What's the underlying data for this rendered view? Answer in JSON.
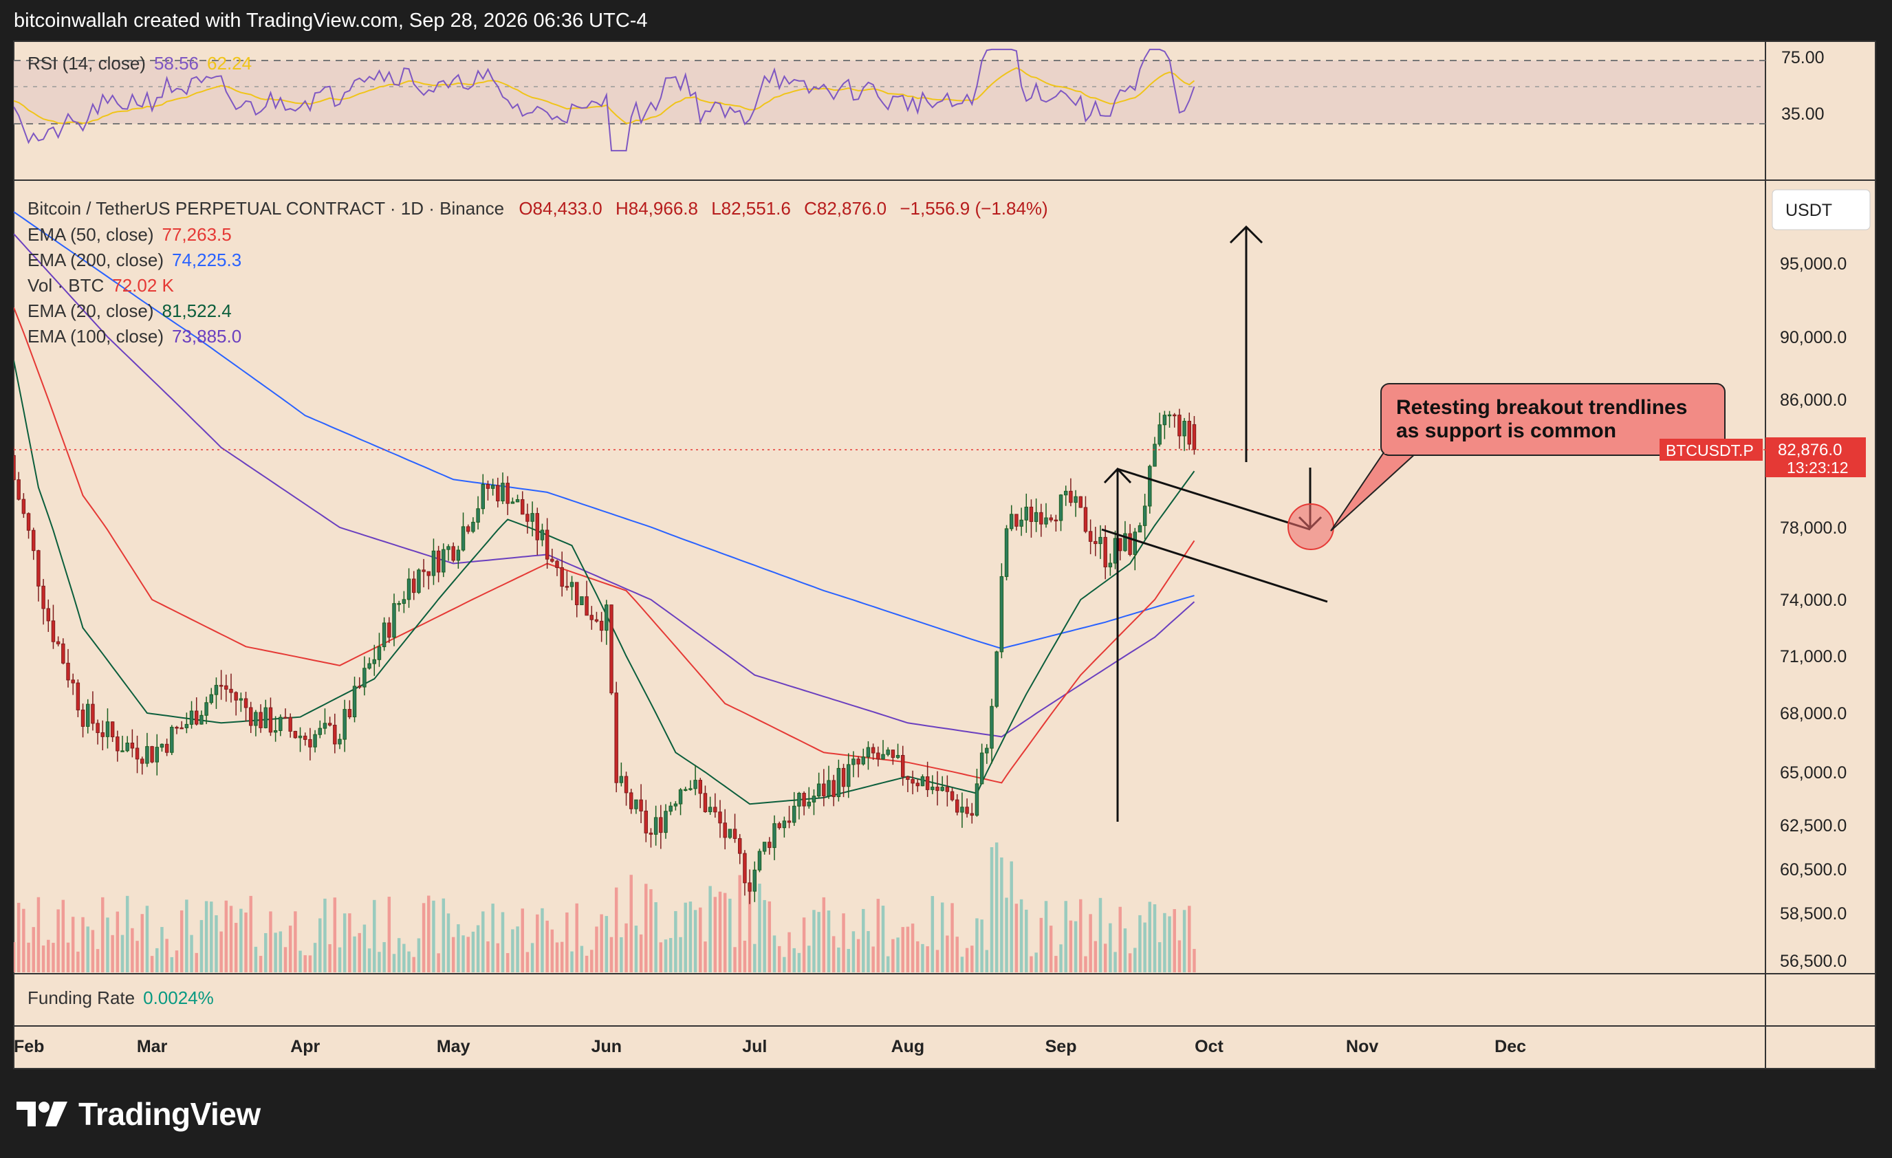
{
  "header": {
    "caption": "bitcoinwallah created with TradingView.com, Sep 28, 2026 06:36 UTC-4"
  },
  "rsi": {
    "label": "RSI (14, close)",
    "value": "58.56",
    "ma_value": "62.24",
    "levels": [
      "75.00",
      "35.00"
    ]
  },
  "main": {
    "symbol_line": "Bitcoin / TetherUS PERPETUAL CONTRACT · 1D · Binance",
    "ohlc": {
      "o": "O84,433.0",
      "h": "H84,966.8",
      "l": "L82,551.6",
      "c": "C82,876.0",
      "chg": "−1,556.9 (−1.84%)"
    },
    "indicators": [
      {
        "label": "EMA (50, close)",
        "value": "77,263.5",
        "color": "#e53935"
      },
      {
        "label": "EMA (200, close)",
        "value": "74,225.3",
        "color": "#2962ff"
      },
      {
        "label": "Vol · BTC",
        "value": "72.02 K",
        "color": "#e53935"
      },
      {
        "label": "EMA (20, close)",
        "value": "81,522.4",
        "color": "#0b5e3c"
      },
      {
        "label": "EMA (100, close)",
        "value": "73,885.0",
        "color": "#6a3fbf"
      }
    ],
    "currency": "USDT",
    "price_tag": {
      "symbol": "BTCUSDT.P",
      "price": "82,876.0",
      "countdown": "13:23:12"
    },
    "annotation": "Retesting breakout trendlines as support is common",
    "funding": {
      "label": "Funding Rate",
      "value": "0.0024%"
    }
  },
  "brand": "TradingView",
  "chart_data": {
    "type": "candlestick",
    "title": "Bitcoin / TetherUS PERPETUAL CONTRACT · 1D · Binance",
    "y_ticks": [
      95000,
      90000,
      86000,
      78000,
      74000,
      71000,
      68000,
      65000,
      62500,
      60500,
      58500,
      56500
    ],
    "y_tick_labels": [
      "95,000.0",
      "90,000.0",
      "86,000.0",
      "78,000.0",
      "74,000.0",
      "71,000.0",
      "68,000.0",
      "65,000.0",
      "62,500.0",
      "60,500.0",
      "58,500.0",
      "56,500.0"
    ],
    "x_tick_labels": [
      "Feb",
      "Mar",
      "Apr",
      "May",
      "Jun",
      "Jul",
      "Aug",
      "Sep",
      "Oct",
      "Nov",
      "Dec"
    ],
    "close_anchors": [
      [
        "Feb 1",
        81000
      ],
      [
        "Feb 8",
        73000
      ],
      [
        "Feb 15",
        68000
      ],
      [
        "Feb 22",
        66500
      ],
      [
        "Mar 1",
        66000
      ],
      [
        "Mar 8",
        67500
      ],
      [
        "Mar 15",
        69500
      ],
      [
        "Mar 22",
        67800
      ],
      [
        "Apr 1",
        66800
      ],
      [
        "Apr 8",
        67000
      ],
      [
        "Apr 15",
        71000
      ],
      [
        "Apr 22",
        75000
      ],
      [
        "May 1",
        77000
      ],
      [
        "May 8",
        80500
      ],
      [
        "May 12",
        80200
      ],
      [
        "May 20",
        76800
      ],
      [
        "May 28",
        73500
      ],
      [
        "Jun 1",
        73000
      ],
      [
        "Jun 3",
        64500
      ],
      [
        "Jun 10",
        62000
      ],
      [
        "Jun 17",
        64800
      ],
      [
        "Jun 24",
        62500
      ],
      [
        "Jun 30",
        60000
      ],
      [
        "Jul 5",
        62500
      ],
      [
        "Jul 15",
        64200
      ],
      [
        "Jul 25",
        65800
      ],
      [
        "Aug 5",
        64500
      ],
      [
        "Aug 14",
        63000
      ],
      [
        "Aug 18",
        68000
      ],
      [
        "Aug 21",
        78000
      ],
      [
        "Aug 27",
        79000
      ],
      [
        "Sep 3",
        79500
      ],
      [
        "Sep 10",
        76500
      ],
      [
        "Sep 16",
        77200
      ],
      [
        "Sep 19",
        81000
      ],
      [
        "Sep 22",
        85000
      ],
      [
        "Sep 25",
        84400
      ],
      [
        "Sep 28",
        82876
      ]
    ],
    "ema20_anchors": [
      [
        "Feb 1",
        88500
      ],
      [
        "Feb 6",
        80500
      ],
      [
        "Feb 15",
        72500
      ],
      [
        "Feb 28",
        68000
      ],
      [
        "Mar 15",
        67500
      ],
      [
        "Mar 31",
        67800
      ],
      [
        "Apr 15",
        69800
      ],
      [
        "May 1",
        75000
      ],
      [
        "May 12",
        78500
      ],
      [
        "May 25",
        77000
      ],
      [
        "Jun 5",
        71000
      ],
      [
        "Jun 15",
        66000
      ],
      [
        "Jun 30",
        63500
      ],
      [
        "Jul 15",
        63800
      ],
      [
        "Aug 1",
        64800
      ],
      [
        "Aug 15",
        64000
      ],
      [
        "Aug 25",
        69000
      ],
      [
        "Sep 5",
        74000
      ],
      [
        "Sep 15",
        76000
      ],
      [
        "Sep 28",
        81522
      ]
    ],
    "ema50_anchors": [
      [
        "Feb 1",
        92000
      ],
      [
        "Feb 15",
        80000
      ],
      [
        "Mar 1",
        74000
      ],
      [
        "Mar 20",
        71500
      ],
      [
        "Apr 8",
        70500
      ],
      [
        "May 1",
        73500
      ],
      [
        "May 20",
        76000
      ],
      [
        "Jun 5",
        74500
      ],
      [
        "Jun 25",
        68500
      ],
      [
        "Jul 15",
        66000
      ],
      [
        "Aug 1",
        65500
      ],
      [
        "Aug 20",
        64500
      ],
      [
        "Sep 5",
        70000
      ],
      [
        "Sep 20",
        74000
      ],
      [
        "Sep 28",
        77263
      ]
    ],
    "ema100_anchors": [
      [
        "Feb 1",
        97000
      ],
      [
        "Feb 20",
        90000
      ],
      [
        "Mar 15",
        83000
      ],
      [
        "Apr 8",
        78000
      ],
      [
        "May 1",
        76000
      ],
      [
        "May 20",
        76500
      ],
      [
        "Jun 10",
        74000
      ],
      [
        "Jul 1",
        70000
      ],
      [
        "Aug 1",
        67500
      ],
      [
        "Aug 20",
        66800
      ],
      [
        "Sep 5",
        69500
      ],
      [
        "Sep 20",
        72000
      ],
      [
        "Sep 28",
        73885
      ]
    ],
    "ema200_anchors": [
      [
        "Feb 1",
        98500
      ],
      [
        "Mar 1",
        92000
      ],
      [
        "Apr 1",
        85000
      ],
      [
        "May 1",
        81000
      ],
      [
        "May 20",
        80200
      ],
      [
        "Jun 15",
        77500
      ],
      [
        "Jul 15",
        74500
      ],
      [
        "Aug 15",
        71800
      ],
      [
        "Aug 20",
        71400
      ],
      [
        "Sep 10",
        72800
      ],
      [
        "Sep 28",
        74225
      ]
    ],
    "rsi_value": 58.56,
    "rsi_levels": [
      75,
      35
    ],
    "annotation": "Retesting breakout trendlines as support is common"
  }
}
